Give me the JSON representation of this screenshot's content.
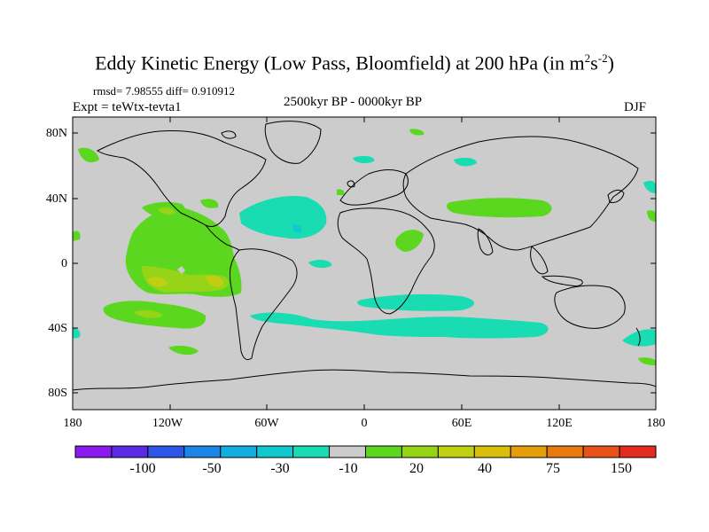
{
  "title": {
    "main": "Eddy Kinetic Energy (Low Pass, Bloomfield) at 200 hPa (in m",
    "sup1": "2",
    "mid": "s",
    "sup2": "-2",
    "end": ")"
  },
  "stats": "rmsd= 7.98555 diff= 0.910912",
  "experiment": "Expt = teWtx-tevta1",
  "period": "2500kyr BP - 0000kyr BP",
  "season": "DJF",
  "y_ticks": [
    "80N",
    "40N",
    "0",
    "40S",
    "80S"
  ],
  "x_ticks": [
    "180",
    "120W",
    "60W",
    "0",
    "60E",
    "120E",
    "180"
  ],
  "colorbar": {
    "colors": [
      "#8a1aee",
      "#5a2ae2",
      "#2d55e6",
      "#1c86e6",
      "#12aee0",
      "#12c8cf",
      "#19dcb2",
      "#cccccc",
      "#5ad71e",
      "#96d418",
      "#c0cf12",
      "#d9bf0b",
      "#e49e0a",
      "#e67a10",
      "#e6521a",
      "#e32b20"
    ],
    "labels": [
      "-100",
      "-50",
      "-30",
      "-10",
      "20",
      "40",
      "75",
      "150"
    ]
  },
  "map_colors": {
    "land_bg": "#cccccc",
    "teal": "#19dcb2",
    "cyan": "#12c8cf",
    "green": "#5ad71e",
    "lime": "#96d418",
    "yellow": "#c0cf12",
    "coast": "#000000"
  }
}
